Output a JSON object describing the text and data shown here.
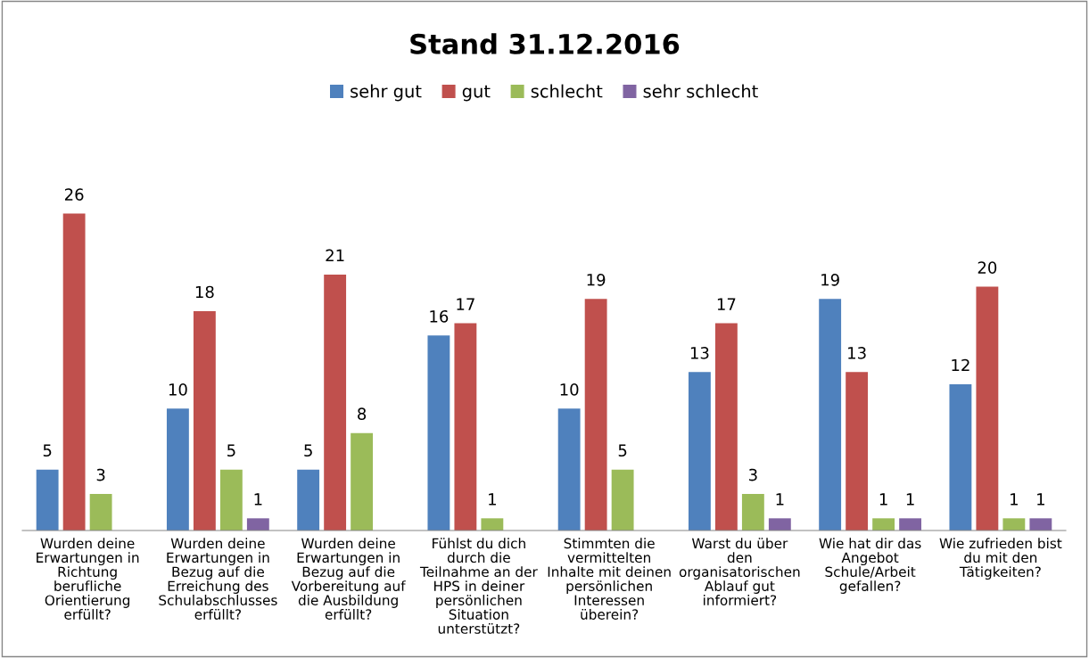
{
  "chart_data": {
    "type": "bar",
    "title": "Stand 31.12.2016",
    "categories": [
      "Wurden deine\nErwartungen in\nRichtung\nberufliche\nOrientierung\nerfüllt?",
      "Wurden deine\nErwartungen in\nBezug auf die\nErreichung des\nSchulabschlusses\nerfüllt?",
      "Wurden deine\nErwartungen in\nBezug auf die\nVorbereitung auf\ndie Ausbildung\nerfüllt?",
      "Fühlst du dich\ndurch die\nTeilnahme an der\nHPS in deiner\npersönlichen\nSituation\nunterstützt?",
      "Stimmten die\nvermittelten\nInhalte mit deinen\npersönlichen\nInteressen\nüberein?",
      "Warst du über\nden\norganisatorischen\nAblauf gut\ninformiert?",
      "Wie hat dir das\nAngebot\nSchule/Arbeit\ngefallen?",
      "Wie zufrieden bist\ndu mit den\nTätigkeiten?"
    ],
    "series": [
      {
        "name": "sehr gut",
        "color": "#4f81bd",
        "values": [
          5,
          10,
          5,
          16,
          10,
          13,
          19,
          12
        ]
      },
      {
        "name": "gut",
        "color": "#c0504d",
        "values": [
          26,
          18,
          21,
          17,
          19,
          17,
          13,
          20
        ]
      },
      {
        "name": "schlecht",
        "color": "#9bbb59",
        "values": [
          3,
          5,
          8,
          1,
          5,
          3,
          1,
          1
        ]
      },
      {
        "name": "sehr schlecht",
        "color": "#8064a2",
        "values": [
          null,
          1,
          null,
          null,
          null,
          1,
          1,
          1
        ]
      }
    ],
    "data_labels": true,
    "legend": "top",
    "grid": false
  }
}
